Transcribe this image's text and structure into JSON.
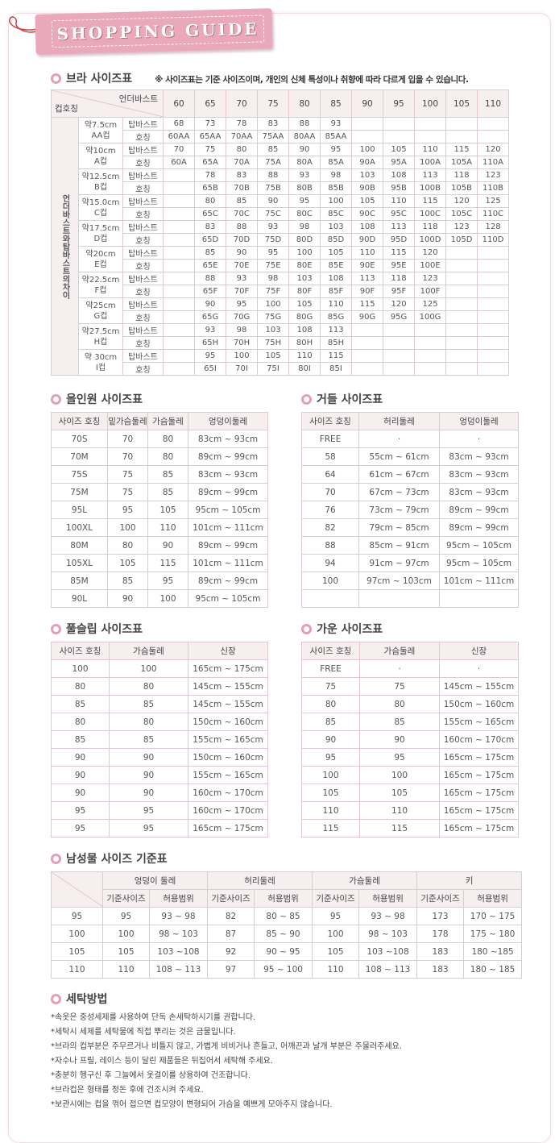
{
  "header": {
    "title": "SHOPPING GUIDE"
  },
  "bra": {
    "title": "브라 사이즈표",
    "note": "※ 사이즈표는 기준 사이즈이며, 개인의 신체 특성이나 취향에 따라 다르게 입을 수 있습니다.",
    "corner_top": "언더바스트",
    "corner_bottom": "컵호칭",
    "side_label": "언더바스트와탑바스트의차이",
    "row_labels": [
      "탑바스트",
      "호칭"
    ],
    "columns": [
      60,
      65,
      70,
      75,
      80,
      85,
      90,
      95,
      100,
      105,
      110
    ],
    "cups": [
      {
        "size": "약7.5cm",
        "cup": "AA컵",
        "top": [
          68,
          73,
          78,
          83,
          88,
          93,
          null,
          null,
          null,
          null,
          null
        ],
        "fit": [
          "60AA",
          "65AA",
          "70AA",
          "75AA",
          "80AA",
          "85AA",
          null,
          null,
          null,
          null,
          null
        ]
      },
      {
        "size": "약10cm",
        "cup": "A컵",
        "top": [
          70,
          75,
          80,
          85,
          90,
          95,
          100,
          105,
          110,
          115,
          120
        ],
        "fit": [
          "60A",
          "65A",
          "70A",
          "75A",
          "80A",
          "85A",
          "90A",
          "95A",
          "100A",
          "105A",
          "110A"
        ]
      },
      {
        "size": "약12.5cm",
        "cup": "B컵",
        "top": [
          null,
          78,
          83,
          88,
          93,
          98,
          103,
          108,
          113,
          118,
          123
        ],
        "fit": [
          null,
          "65B",
          "70B",
          "75B",
          "80B",
          "85B",
          "90B",
          "95B",
          "100B",
          "105B",
          "110B"
        ]
      },
      {
        "size": "약15.0cm",
        "cup": "C컵",
        "top": [
          null,
          80,
          85,
          90,
          95,
          100,
          105,
          110,
          115,
          120,
          125
        ],
        "fit": [
          null,
          "65C",
          "70C",
          "75C",
          "80C",
          "85C",
          "90C",
          "95C",
          "100C",
          "105C",
          "110C"
        ]
      },
      {
        "size": "약17.5cm",
        "cup": "D컵",
        "top": [
          null,
          83,
          88,
          93,
          98,
          103,
          108,
          113,
          118,
          123,
          128
        ],
        "fit": [
          null,
          "65D",
          "70D",
          "75D",
          "80D",
          "85D",
          "90D",
          "95D",
          "100D",
          "105D",
          "110D"
        ]
      },
      {
        "size": "약20cm",
        "cup": "E컵",
        "top": [
          null,
          85,
          90,
          95,
          100,
          105,
          110,
          115,
          120,
          null,
          null
        ],
        "fit": [
          null,
          "65E",
          "70E",
          "75E",
          "80E",
          "85E",
          "90E",
          "95E",
          "100E",
          null,
          null
        ]
      },
      {
        "size": "약22.5cm",
        "cup": "F컵",
        "top": [
          null,
          88,
          93,
          98,
          103,
          108,
          113,
          118,
          123,
          null,
          null
        ],
        "fit": [
          null,
          "65F",
          "70F",
          "75F",
          "80F",
          "85F",
          "90F",
          "95F",
          "100F",
          null,
          null
        ]
      },
      {
        "size": "약25cm",
        "cup": "G컵",
        "top": [
          null,
          90,
          95,
          100,
          105,
          110,
          115,
          120,
          125,
          null,
          null
        ],
        "fit": [
          null,
          "65G",
          "70G",
          "75G",
          "80G",
          "85G",
          "90G",
          "95G",
          "100G",
          null,
          null
        ]
      },
      {
        "size": "약27.5cm",
        "cup": "H컵",
        "top": [
          null,
          93,
          98,
          103,
          108,
          113,
          null,
          null,
          null,
          null,
          null
        ],
        "fit": [
          null,
          "65H",
          "70H",
          "75H",
          "80H",
          "85H",
          null,
          null,
          null,
          null,
          null
        ]
      },
      {
        "size": "약 30cm",
        "cup": "I컵",
        "top": [
          null,
          95,
          100,
          105,
          110,
          115,
          null,
          null,
          null,
          null,
          null
        ],
        "fit": [
          null,
          "65I",
          "70I",
          "75I",
          "80I",
          "85I",
          null,
          null,
          null,
          null,
          null
        ]
      }
    ]
  },
  "allinone": {
    "title": "올인원 사이즈표",
    "headers": [
      "사이즈 호칭",
      "밑가슴둘레",
      "가슴둘레",
      "엉덩이둘레"
    ],
    "rows": [
      [
        "70S",
        70,
        80,
        "83cm ~ 93cm"
      ],
      [
        "70M",
        70,
        80,
        "89cm ~ 99cm"
      ],
      [
        "75S",
        75,
        85,
        "83cm ~ 93cm"
      ],
      [
        "75M",
        75,
        85,
        "89cm ~ 99cm"
      ],
      [
        "95L",
        95,
        105,
        "95cm ~ 105cm"
      ],
      [
        "100XL",
        100,
        110,
        "101cm ~ 111cm"
      ],
      [
        "80M",
        80,
        90,
        "89cm ~ 99cm"
      ],
      [
        "105XL",
        105,
        115,
        "101cm ~ 111cm"
      ],
      [
        "85M",
        85,
        95,
        "89cm ~ 99cm"
      ],
      [
        "90L",
        90,
        100,
        "95cm ~ 105cm"
      ]
    ]
  },
  "girdle": {
    "title": "거들 사이즈표",
    "headers": [
      "사이즈 호칭",
      "허리둘레",
      "엉덩이둘레"
    ],
    "rows": [
      [
        "FREE",
        "·",
        "·"
      ],
      [
        58,
        "55cm ~ 61cm",
        "83cm ~ 93cm"
      ],
      [
        64,
        "61cm ~ 67cm",
        "83cm ~ 93cm"
      ],
      [
        70,
        "67cm ~ 73cm",
        "83cm ~ 93cm"
      ],
      [
        76,
        "73cm ~ 79cm",
        "89cm ~ 99cm"
      ],
      [
        82,
        "79cm ~ 85cm",
        "89cm ~ 99cm"
      ],
      [
        88,
        "85cm ~ 91cm",
        "95cm ~ 105cm"
      ],
      [
        94,
        "91cm ~ 97cm",
        "95cm ~ 105cm"
      ],
      [
        100,
        "97cm ~ 103cm",
        "101cm ~ 111cm"
      ],
      [
        null,
        null,
        null
      ]
    ]
  },
  "fullslip": {
    "title": "풀슬립 사이즈표",
    "headers": [
      "사이즈 호칭",
      "가슴둘레",
      "신장"
    ],
    "rows": [
      [
        100,
        100,
        "165cm ~ 175cm"
      ],
      [
        80,
        80,
        "145cm ~ 155cm"
      ],
      [
        85,
        85,
        "145cm ~ 155cm"
      ],
      [
        80,
        80,
        "150cm ~ 160cm"
      ],
      [
        85,
        85,
        "155cm ~ 165cm"
      ],
      [
        90,
        90,
        "150cm ~ 160cm"
      ],
      [
        90,
        90,
        "155cm ~ 165cm"
      ],
      [
        90,
        90,
        "160cm ~ 170cm"
      ],
      [
        95,
        95,
        "160cm ~ 170cm"
      ],
      [
        95,
        95,
        "165cm ~ 175cm"
      ]
    ]
  },
  "gown": {
    "title": "가운 사이즈표",
    "headers": [
      "사이즈 호칭",
      "가슴둘레",
      "신장"
    ],
    "rows": [
      [
        "FREE",
        "·",
        "·"
      ],
      [
        75,
        75,
        "145cm ~ 155cm"
      ],
      [
        80,
        80,
        "150cm ~ 160cm"
      ],
      [
        85,
        85,
        "155cm ~ 165cm"
      ],
      [
        90,
        90,
        "160cm ~ 170cm"
      ],
      [
        95,
        95,
        "165cm ~ 175cm"
      ],
      [
        100,
        100,
        "165cm ~ 175cm"
      ],
      [
        105,
        105,
        "165cm ~ 175cm"
      ],
      [
        110,
        110,
        "165cm ~ 175cm"
      ],
      [
        115,
        115,
        "165cm ~ 175cm"
      ]
    ]
  },
  "men": {
    "title": "남성물 사이즈 기준표",
    "groups": [
      "엉덩이 둘레",
      "허리둘레",
      "가슴둘레",
      "키"
    ],
    "subheaders": [
      "기준사이즈",
      "허용범위"
    ],
    "rows": [
      [
        95,
        95,
        "93 ~ 98",
        82,
        "80 ~ 85",
        95,
        "93 ~ 98",
        173,
        "170 ~ 175"
      ],
      [
        100,
        100,
        "98 ~ 103",
        87,
        "85 ~ 90",
        100,
        "98 ~ 103",
        178,
        "175 ~ 180"
      ],
      [
        105,
        105,
        "103 ~108",
        92,
        "90 ~ 95",
        105,
        "103 ~108",
        183,
        "180 ~185"
      ],
      [
        110,
        110,
        "108 ~ 113",
        97,
        "95 ~ 100",
        110,
        "108 ~ 113",
        183,
        "180 ~ 185"
      ]
    ]
  },
  "washing": {
    "title": "세탁방법",
    "lines": [
      "*속옷은 중성세제를 사용하여 단독 손세탁하시기를 권합니다.",
      "*세탁시 세제를 세탁물에 직접 뿌리는 것은 금물입니다.",
      "*브라의 컵부분은 주무르거나 비틀지 않고, 가볍게 비비거나 흔들고, 어깨끈과 날개 부분은 주물러주세요.",
      "*자수나 프릴, 레이스 등이 달린 제품들은 뒤집어서 세탁해 주세요.",
      "*충분히 헹구신 후 그늘에서 옷걸이를 상용하여 건조합니다.",
      "*브라컵은 형태를 정돈 후에 건조시켜 주세요.",
      "*보관시에는 컵을 꺾어 접으면 컵모양이 변형되어 가슴을 예쁘게 모아주지 않습니다."
    ]
  }
}
